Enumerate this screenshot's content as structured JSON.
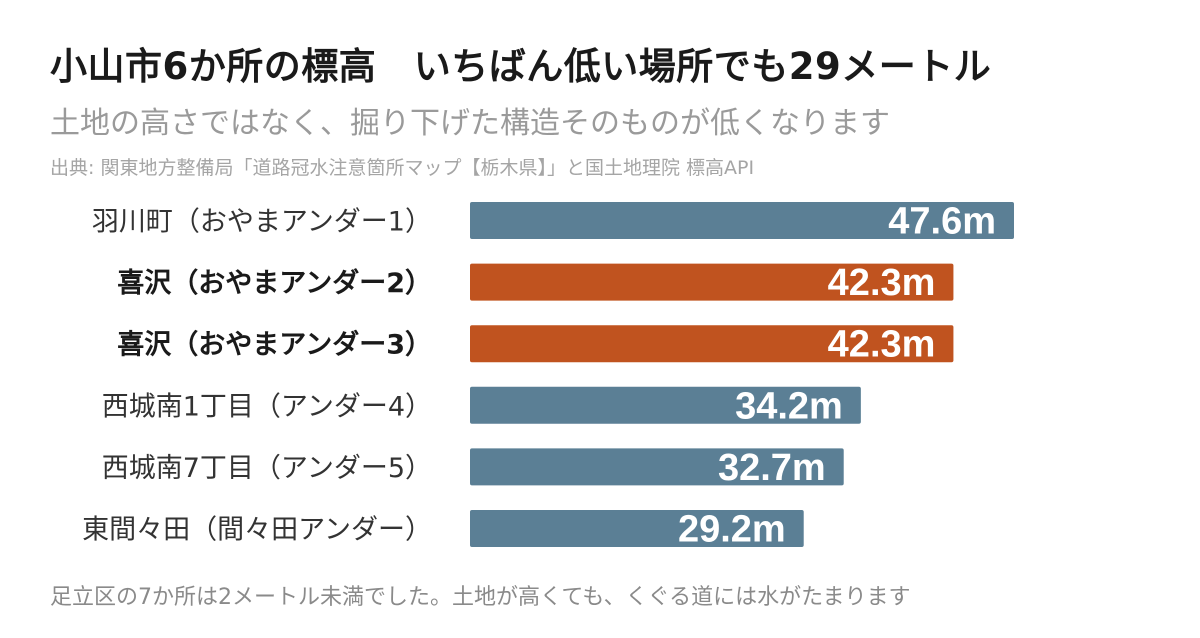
{
  "title": "小山市6か所の標高　いちばん低い場所でも29メートル",
  "subtitle": "土地の高さではなく、掘り下げた構造そのものが低くなります",
  "source": "出典: 関東地方整備局「道路冠水注意箇所マップ【栃木県】」と国土地理院 標高API",
  "footnote": "足立区の7か所は2メートル未満でした。土地が高くても、くぐる道には水がたまります",
  "colors": {
    "default_bar": "#5b7f95",
    "highlight_bar": "#c0531f"
  },
  "chart_data": {
    "type": "bar",
    "orientation": "horizontal",
    "unit": "m",
    "categories": [
      "羽川町（おやまアンダー1）",
      "喜沢（おやまアンダー2）",
      "喜沢（おやまアンダー3）",
      "西城南1丁目（アンダー4）",
      "西城南7丁目（アンダー5）",
      "東間々田（間々田アンダー）"
    ],
    "values": [
      47.6,
      42.3,
      42.3,
      34.2,
      32.7,
      29.2
    ],
    "value_labels": [
      "47.6m",
      "42.3m",
      "42.3m",
      "34.2m",
      "32.7m",
      "29.2m"
    ],
    "highlight": [
      false,
      true,
      true,
      false,
      false,
      false
    ],
    "xlim": [
      0,
      47.6
    ],
    "grid": false,
    "legend": "none"
  }
}
